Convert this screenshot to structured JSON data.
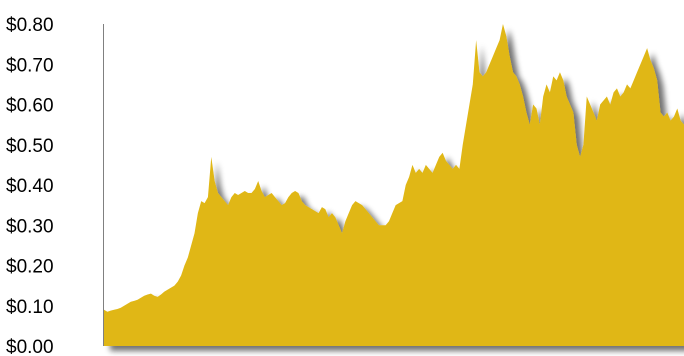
{
  "chart_data": {
    "type": "area",
    "title": "",
    "xlabel": "",
    "ylabel": "",
    "ylim": [
      0,
      0.8
    ],
    "yticks": [
      0.0,
      0.1,
      0.2,
      0.3,
      0.4,
      0.5,
      0.6,
      0.7,
      0.8
    ],
    "ytick_labels": [
      "$0.00",
      "$0.10",
      "$0.20",
      "$0.30",
      "$0.40",
      "$0.50",
      "$0.60",
      "$0.70",
      "$0.80"
    ],
    "x_tick_labels": [],
    "grid": false,
    "legend": "none",
    "fill_color": "#E0B714",
    "shadow_color": "#9a9a9a",
    "series": [
      {
        "values": [
          0.09,
          0.085,
          0.088,
          0.09,
          0.092,
          0.095,
          0.1,
          0.105,
          0.11,
          0.112,
          0.115,
          0.12,
          0.125,
          0.128,
          0.13,
          0.125,
          0.122,
          0.128,
          0.135,
          0.14,
          0.145,
          0.15,
          0.16,
          0.175,
          0.2,
          0.22,
          0.25,
          0.28,
          0.33,
          0.36,
          0.355,
          0.37,
          0.47,
          0.41,
          0.38,
          0.37,
          0.36,
          0.35,
          0.37,
          0.38,
          0.375,
          0.38,
          0.385,
          0.38,
          0.38,
          0.39,
          0.41,
          0.385,
          0.37,
          0.375,
          0.38,
          0.37,
          0.36,
          0.35,
          0.355,
          0.37,
          0.38,
          0.385,
          0.38,
          0.36,
          0.35,
          0.345,
          0.34,
          0.335,
          0.33,
          0.345,
          0.34,
          0.32,
          0.33,
          0.32,
          0.3,
          0.28,
          0.31,
          0.33,
          0.35,
          0.36,
          0.355,
          0.35,
          0.34,
          0.33,
          0.32,
          0.31,
          0.3,
          0.3,
          0.3,
          0.31,
          0.33,
          0.35,
          0.355,
          0.36,
          0.4,
          0.42,
          0.45,
          0.43,
          0.44,
          0.43,
          0.45,
          0.44,
          0.43,
          0.45,
          0.47,
          0.48,
          0.46,
          0.45,
          0.44,
          0.45,
          0.44,
          0.5,
          0.55,
          0.6,
          0.65,
          0.76,
          0.68,
          0.67,
          0.68,
          0.7,
          0.72,
          0.74,
          0.76,
          0.8,
          0.77,
          0.72,
          0.68,
          0.67,
          0.65,
          0.62,
          0.58,
          0.55,
          0.6,
          0.59,
          0.55,
          0.62,
          0.65,
          0.63,
          0.67,
          0.66,
          0.68,
          0.66,
          0.62,
          0.6,
          0.58,
          0.5,
          0.47,
          0.5,
          0.62,
          0.6,
          0.58,
          0.56,
          0.6,
          0.61,
          0.62,
          0.6,
          0.63,
          0.64,
          0.62,
          0.63,
          0.65,
          0.64,
          0.66,
          0.68,
          0.7,
          0.72,
          0.74,
          0.71,
          0.69,
          0.66,
          0.58,
          0.57,
          0.58,
          0.56,
          0.57,
          0.59,
          0.56,
          0.55
        ]
      }
    ]
  }
}
